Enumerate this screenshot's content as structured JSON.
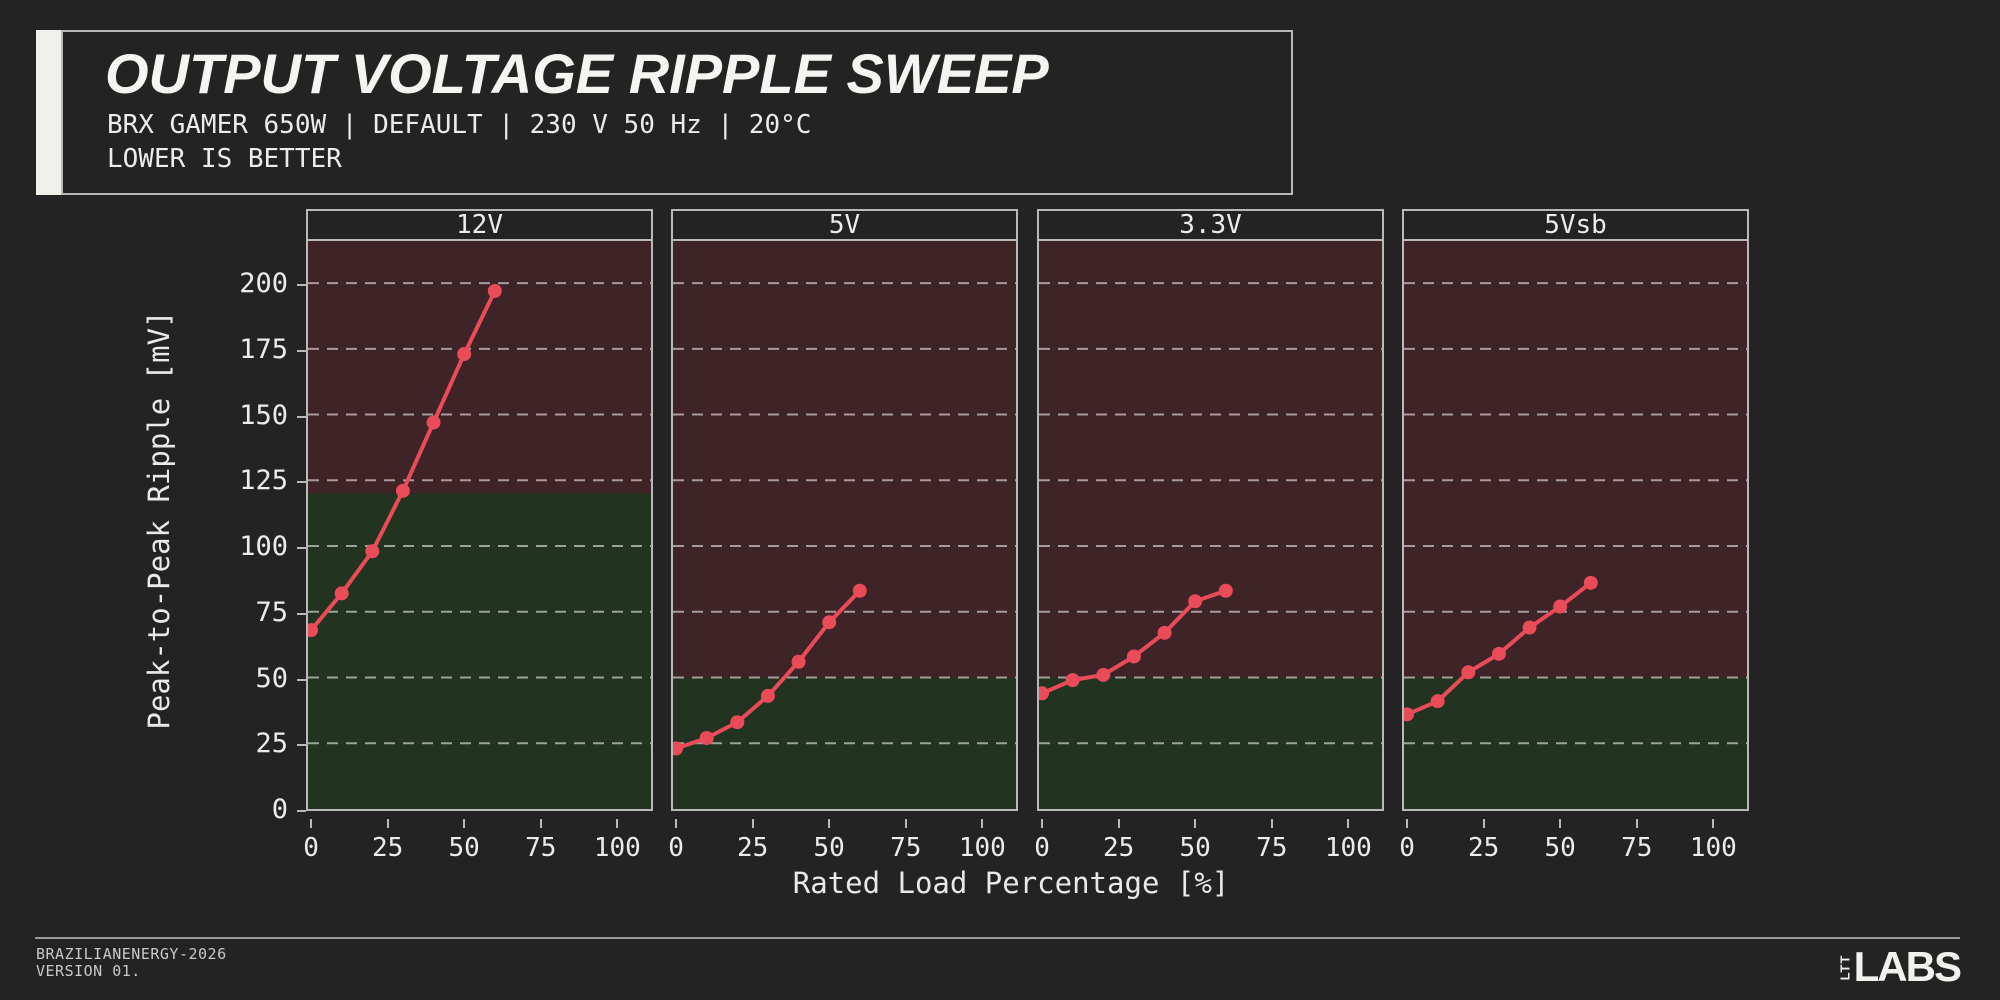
{
  "header": {
    "title": "OUTPUT VOLTAGE RIPPLE SWEEP",
    "subtitle": "BRX GAMER 650W | DEFAULT | 230 V 50 Hz | 20°C",
    "note": "LOWER IS BETTER"
  },
  "footer": {
    "project": "BRAZILIANENERGY-2026",
    "version": "VERSION 01.",
    "logo_vertical": "LTT",
    "logo_main": "LABS"
  },
  "colors": {
    "background": "#232323",
    "panel_border": "#b9b9b9",
    "series": "#ea4b59",
    "zone_within_limit": "#223320",
    "zone_over_limit": "#3e2327",
    "gridline": "rgba(255,255,255,0.55)",
    "accent_bar": "#f0efea",
    "text": "#ececec"
  },
  "chart_data": {
    "type": "line",
    "title": "OUTPUT VOLTAGE RIPPLE SWEEP",
    "subtitle": "BRX GAMER 650W | DEFAULT | 230 V 50 Hz | 20°C",
    "note": "LOWER IS BETTER",
    "xlabel": "Rated Load Percentage [%]",
    "ylabel": "Peak-to-Peak Ripple [mV]",
    "x": [
      0,
      10,
      20,
      30,
      40,
      50,
      60
    ],
    "xticks": [
      0,
      25,
      50,
      75,
      100
    ],
    "yticks": [
      0,
      25,
      50,
      75,
      100,
      125,
      150,
      175,
      200
    ],
    "xlim": [
      -1,
      111
    ],
    "ylim": [
      0,
      216
    ],
    "grid": "horizontal dashed",
    "legend": "none",
    "zones": "green below recommended limit, dark red above",
    "panels": [
      {
        "label": "12V",
        "limit_mV": 120,
        "values": [
          68,
          82,
          98,
          121,
          147,
          173,
          197
        ]
      },
      {
        "label": "5V",
        "limit_mV": 50,
        "values": [
          23,
          27,
          33,
          43,
          56,
          71,
          83
        ]
      },
      {
        "label": "3.3V",
        "limit_mV": 50,
        "values": [
          44,
          49,
          51,
          58,
          67,
          79,
          83
        ]
      },
      {
        "label": "5Vsb",
        "limit_mV": 50,
        "values": [
          36,
          41,
          52,
          59,
          69,
          77,
          86
        ]
      }
    ]
  }
}
